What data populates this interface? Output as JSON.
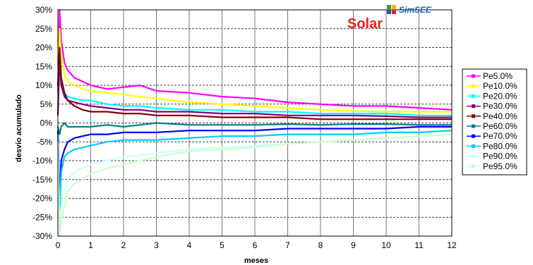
{
  "chart_data": {
    "type": "line",
    "title": "Solar",
    "xlabel": "meses",
    "ylabel": "desvío acumulado",
    "xlim": [
      0,
      12
    ],
    "ylim": [
      -30,
      30
    ],
    "xticks": [
      "0",
      "1",
      "2",
      "3",
      "4",
      "5",
      "6",
      "7",
      "8",
      "9",
      "10",
      "11",
      "12"
    ],
    "yticks": [
      "30%",
      "25%",
      "20%",
      "15%",
      "10%",
      "5%",
      "0%",
      "-5%",
      "-10%",
      "-15%",
      "-20%",
      "-25%",
      "-30%"
    ],
    "grid": true,
    "legend_position": "right",
    "colors": {
      "title": "#e8231f",
      "logo_text": "#1f5fa8",
      "grid_dark": "#000000",
      "grid_light": "#555555"
    },
    "logo": {
      "text": "SimSEE",
      "icon": "simsee-grid-icon"
    },
    "x": [
      0,
      0.05,
      0.1,
      0.2,
      0.3,
      0.5,
      0.75,
      1,
      1.5,
      2,
      2.5,
      3,
      4,
      5,
      6,
      7,
      8,
      9,
      10,
      11,
      12
    ],
    "series": [
      {
        "name": "Pe5.0%",
        "color": "#ff00ff",
        "values": [
          8,
          30,
          22,
          16,
          14,
          12,
          11,
          10,
          9,
          9.5,
          10,
          8.5,
          8,
          7,
          6.5,
          5.5,
          5,
          4.5,
          4.5,
          4,
          3.5
        ]
      },
      {
        "name": "Pe10.0%",
        "color": "#ffff00",
        "values": [
          5,
          25,
          18,
          13,
          11,
          10,
          9,
          8.5,
          8,
          7.5,
          7,
          6.5,
          5.5,
          5,
          4.5,
          4,
          3.5,
          3.2,
          3,
          3,
          3
        ]
      },
      {
        "name": "Pe20.0%",
        "color": "#00ffff",
        "values": [
          3,
          14,
          10,
          8,
          7,
          6.5,
          6,
          6,
          5,
          4.5,
          4.5,
          4,
          3.5,
          3.5,
          3,
          3,
          2.5,
          2.5,
          2.5,
          2,
          2
        ]
      },
      {
        "name": "Pe30.0%",
        "color": "#800080",
        "values": [
          2,
          18,
          10,
          7,
          6,
          5.5,
          5,
          4.5,
          4,
          3.5,
          3.5,
          3,
          3,
          2.5,
          2.5,
          2,
          2,
          2,
          1.8,
          1.5,
          1.5
        ]
      },
      {
        "name": "Pe40.0%",
        "color": "#800000",
        "values": [
          10,
          20,
          12,
          8,
          6,
          4.5,
          3.5,
          3,
          3,
          2.5,
          2.5,
          2,
          2,
          1.5,
          1.5,
          1.5,
          1,
          1,
          1,
          1,
          1
        ]
      },
      {
        "name": "Pe60.0%",
        "color": "#008080",
        "values": [
          -1,
          -3,
          -1,
          0,
          -1,
          -1,
          -1,
          -1,
          -0.5,
          -1,
          -0.5,
          0,
          -0.5,
          -0.5,
          -0.5,
          -0.3,
          -0.5,
          -0.3,
          -0.3,
          -0.5,
          -0.5
        ]
      },
      {
        "name": "Pe70.0%",
        "color": "#0000ff",
        "values": [
          -2,
          -20,
          -10,
          -7,
          -5,
          -4,
          -3.5,
          -3,
          -3,
          -2.5,
          -2.5,
          -2.5,
          -2,
          -2,
          -2,
          -1.5,
          -1.5,
          -1.5,
          -1.5,
          -1,
          -1
        ]
      },
      {
        "name": "Pe80.0%",
        "color": "#00ccff",
        "values": [
          -3,
          -25,
          -13,
          -9,
          -8,
          -7,
          -6.5,
          -6,
          -5,
          -4.5,
          -4.5,
          -4.5,
          -4,
          -3.5,
          -3.5,
          -3,
          -3,
          -3,
          -2.5,
          -2.5,
          -2
        ]
      },
      {
        "name": "Pe90.0%",
        "color": "#ccffff",
        "values": [
          -5,
          -28,
          -22,
          -18,
          -15,
          -13,
          -12,
          -11,
          -10,
          -9,
          -8.5,
          -8,
          -7,
          -6.5,
          -6,
          -5.5,
          -5,
          -4.5,
          -4,
          -3.5,
          -3
        ]
      },
      {
        "name": "Pe95.0%",
        "color": "#ccffcc",
        "values": [
          -8,
          -30,
          -26,
          -22,
          -18,
          -16,
          -15,
          -13.5,
          -12,
          -11,
          -10,
          -9,
          -7.5,
          -7,
          -6.5,
          -5.5,
          -5,
          -4.5,
          -4,
          -3.5,
          -3
        ]
      }
    ]
  }
}
